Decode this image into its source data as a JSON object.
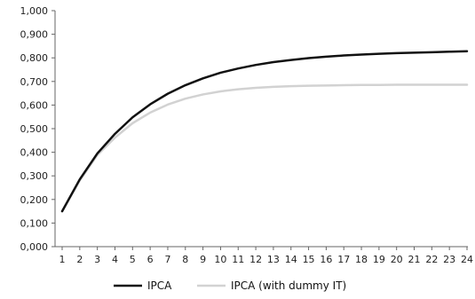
{
  "chart_data": {
    "type": "line",
    "title": "",
    "xlabel": "",
    "ylabel": "",
    "x": [
      1,
      2,
      3,
      4,
      5,
      6,
      7,
      8,
      9,
      10,
      11,
      12,
      13,
      14,
      15,
      16,
      17,
      18,
      19,
      20,
      21,
      22,
      23,
      24
    ],
    "x_tick_labels": [
      "1",
      "2",
      "3",
      "4",
      "5",
      "6",
      "7",
      "8",
      "9",
      "10",
      "11",
      "12",
      "13",
      "14",
      "15",
      "16",
      "17",
      "18",
      "19",
      "20",
      "21",
      "22",
      "23",
      "24"
    ],
    "ylim": [
      0,
      1
    ],
    "y_ticks": [
      0,
      0.1,
      0.2,
      0.3,
      0.4,
      0.5,
      0.6,
      0.7,
      0.8,
      0.9,
      1.0
    ],
    "y_tick_labels": [
      "0,000",
      "0,100",
      "0,200",
      "0,300",
      "0,400",
      "0,500",
      "0,600",
      "0,700",
      "0,800",
      "0,900",
      "1,000"
    ],
    "grid": false,
    "legend_position": "bottom",
    "series": [
      {
        "name": "IPCA",
        "color": "#111111",
        "values": [
          0.15,
          0.285,
          0.395,
          0.478,
          0.548,
          0.603,
          0.648,
          0.684,
          0.713,
          0.737,
          0.755,
          0.77,
          0.782,
          0.791,
          0.799,
          0.805,
          0.81,
          0.814,
          0.817,
          0.82,
          0.822,
          0.824,
          0.826,
          0.828
        ]
      },
      {
        "name": "IPCA (with dummy IT)",
        "color": "#d2d2d2",
        "values": [
          0.15,
          0.28,
          0.388,
          0.462,
          0.523,
          0.568,
          0.602,
          0.627,
          0.645,
          0.658,
          0.667,
          0.673,
          0.677,
          0.68,
          0.682,
          0.683,
          0.684,
          0.685,
          0.685,
          0.686,
          0.686,
          0.686,
          0.686,
          0.686
        ]
      }
    ]
  }
}
